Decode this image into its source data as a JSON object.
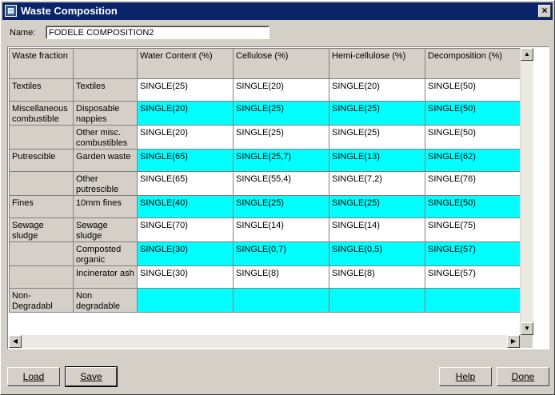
{
  "window": {
    "title": "Waste Composition",
    "close_label": "×"
  },
  "name_field": {
    "label": "Name:",
    "value": "FODELE COMPOSITION2"
  },
  "grid": {
    "headers": [
      "Waste fraction",
      "",
      "Water Content (%)",
      "Cellulose (%)",
      "Hemi-cellulose (%)",
      "Decomposition (%)"
    ],
    "rows": [
      {
        "fraction": "Textiles",
        "sub": "Textiles",
        "water": "SINGLE(25)",
        "cellulose": "SINGLE(20)",
        "hemi": "SINGLE(20)",
        "decomp": "SINGLE(50)",
        "style": "white"
      },
      {
        "fraction": "Miscellaneous combustible",
        "sub": "Disposable nappies",
        "water": "SINGLE(20)",
        "cellulose": "SINGLE(25)",
        "hemi": "SINGLE(25)",
        "decomp": "SINGLE(50)",
        "style": "cyan"
      },
      {
        "fraction": "",
        "sub": "Other misc. combustibles",
        "water": "SINGLE(20)",
        "cellulose": "SINGLE(25)",
        "hemi": "SINGLE(25)",
        "decomp": "SINGLE(50)",
        "style": "white"
      },
      {
        "fraction": "Putrescible",
        "sub": "Garden waste",
        "water": "SINGLE(65)",
        "cellulose": "SINGLE(25,7)",
        "hemi": "SINGLE(13)",
        "decomp": "SINGLE(62)",
        "style": "cyan"
      },
      {
        "fraction": "",
        "sub": "Other putrescible",
        "water": "SINGLE(65)",
        "cellulose": "SINGLE(55,4)",
        "hemi": "SINGLE(7,2)",
        "decomp": "SINGLE(76)",
        "style": "white"
      },
      {
        "fraction": "Fines",
        "sub": "10mm fines",
        "water": "SINGLE(40)",
        "cellulose": "SINGLE(25)",
        "hemi": "SINGLE(25)",
        "decomp": "SINGLE(50)",
        "style": "cyan"
      },
      {
        "fraction": "Sewage sludge",
        "sub": "Sewage sludge",
        "water": "SINGLE(70)",
        "cellulose": "SINGLE(14)",
        "hemi": "SINGLE(14)",
        "decomp": "SINGLE(75)",
        "style": "white"
      },
      {
        "fraction": "",
        "sub": "Composted organic",
        "water": "SINGLE(30)",
        "cellulose": "SINGLE(0,7)",
        "hemi": "SINGLE(0,5)",
        "decomp": "SINGLE(57)",
        "style": "cyan"
      },
      {
        "fraction": "",
        "sub": "Incinerator ash",
        "water": "SINGLE(30)",
        "cellulose": "SINGLE(8)",
        "hemi": "SINGLE(8)",
        "decomp": "SINGLE(57)",
        "style": "white"
      },
      {
        "fraction": "Non-Degradabl",
        "sub": "Non degradable",
        "water": "",
        "cellulose": "",
        "hemi": "",
        "decomp": "",
        "style": "cyan"
      }
    ]
  },
  "buttons": {
    "load": "Load",
    "save": "Save",
    "help": "Help",
    "done": "Done"
  }
}
